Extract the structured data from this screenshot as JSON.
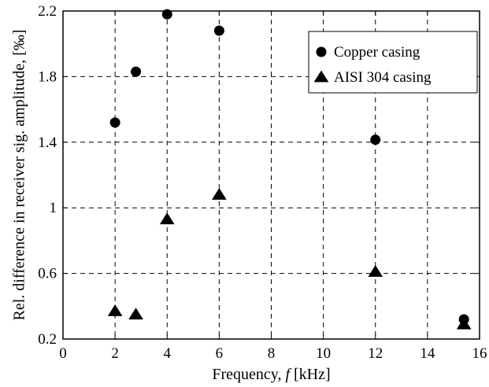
{
  "chart_data": {
    "type": "scatter",
    "x_axis": {
      "label_prefix": "Frequency, ",
      "label_var": "f",
      "label_unit": " [kHz]",
      "min": 0,
      "max": 16,
      "ticks": [
        0,
        2,
        4,
        6,
        8,
        10,
        12,
        14,
        16
      ],
      "tick_labels": [
        "0",
        "2",
        "4",
        "6",
        "8",
        "10",
        "12",
        "14",
        "16"
      ]
    },
    "y_axis": {
      "label": "Rel. difference in receiver sig. amplitude, [‰]",
      "min": 0.2,
      "max": 2.2,
      "ticks": [
        0.2,
        0.6,
        1.0,
        1.4,
        1.8,
        2.2
      ],
      "tick_labels": [
        "0.2",
        "0.6",
        "1",
        "1.4",
        "1.8",
        "2.2"
      ]
    },
    "grid": true,
    "legend_position": "top-right",
    "series": [
      {
        "name": "Copper casing",
        "marker": "circle",
        "color": "#000000",
        "points": [
          {
            "x": 2.0,
            "y": 1.52
          },
          {
            "x": 2.8,
            "y": 1.83
          },
          {
            "x": 4.0,
            "y": 2.18
          },
          {
            "x": 6.0,
            "y": 2.08
          },
          {
            "x": 12.0,
            "y": 1.415
          },
          {
            "x": 15.4,
            "y": 0.32
          }
        ]
      },
      {
        "name": "AISI 304 casing",
        "marker": "triangle",
        "color": "#000000",
        "points": [
          {
            "x": 2.0,
            "y": 0.37
          },
          {
            "x": 2.8,
            "y": 0.35
          },
          {
            "x": 4.0,
            "y": 0.93
          },
          {
            "x": 6.0,
            "y": 1.08
          },
          {
            "x": 12.0,
            "y": 0.61
          },
          {
            "x": 15.4,
            "y": 0.29
          }
        ]
      }
    ]
  }
}
